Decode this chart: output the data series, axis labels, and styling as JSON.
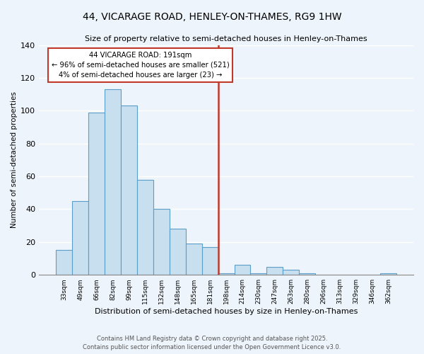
{
  "title_line1": "44, VICARAGE ROAD, HENLEY-ON-THAMES, RG9 1HW",
  "title_line2": "Size of property relative to semi-detached houses in Henley-on-Thames",
  "xlabel": "Distribution of semi-detached houses by size in Henley-on-Thames",
  "ylabel": "Number of semi-detached properties",
  "bar_labels": [
    "33sqm",
    "49sqm",
    "66sqm",
    "82sqm",
    "99sqm",
    "115sqm",
    "132sqm",
    "148sqm",
    "165sqm",
    "181sqm",
    "198sqm",
    "214sqm",
    "230sqm",
    "247sqm",
    "263sqm",
    "280sqm",
    "296sqm",
    "313sqm",
    "329sqm",
    "346sqm",
    "362sqm"
  ],
  "bar_heights": [
    15,
    45,
    99,
    113,
    103,
    58,
    40,
    28,
    19,
    17,
    1,
    6,
    1,
    5,
    3,
    1,
    0,
    0,
    0,
    0,
    1
  ],
  "bar_color": "#c8dff0",
  "bar_edge_color": "#5a9ec9",
  "vline_x_index": 10,
  "vline_color": "#c0392b",
  "annotation_title": "44 VICARAGE ROAD: 191sqm",
  "annotation_line1": "← 96% of semi-detached houses are smaller (521)",
  "annotation_line2": "4% of semi-detached houses are larger (23) →",
  "annotation_box_color": "#ffffff",
  "annotation_box_edge": "#c0392b",
  "ylim": [
    0,
    140
  ],
  "yticks": [
    0,
    20,
    40,
    60,
    80,
    100,
    120,
    140
  ],
  "footer_line1": "Contains HM Land Registry data © Crown copyright and database right 2025.",
  "footer_line2": "Contains public sector information licensed under the Open Government Licence v3.0.",
  "bg_color": "#eef4fb",
  "grid_color": "#ffffff"
}
